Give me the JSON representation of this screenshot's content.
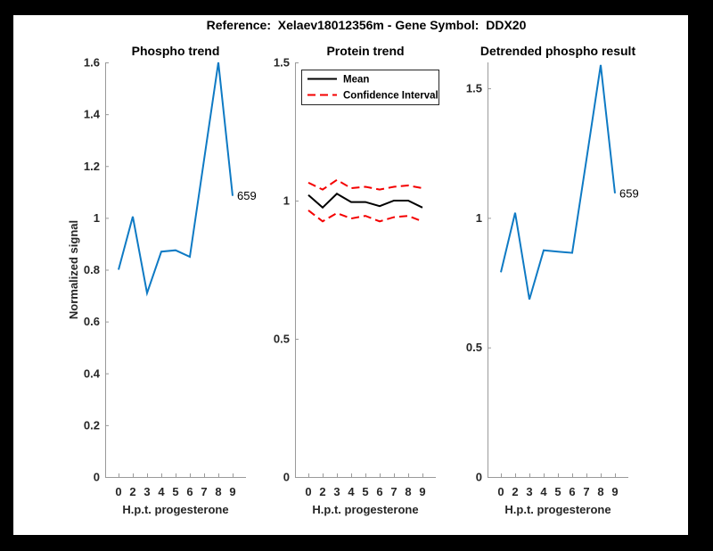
{
  "figure": {
    "title": "Reference:  Xelaev18012356m - Gene Symbol:  DDX20",
    "background": "#000000",
    "canvas": "#ffffff"
  },
  "colors": {
    "blue": "#0e7ac4",
    "red": "#f40000",
    "black": "#000000",
    "axis": "#9a9a9a",
    "text": "#262626"
  },
  "chart_data": [
    {
      "type": "line",
      "title": "Phospho trend",
      "xlabel": "H.p.t. progesterone",
      "ylabel": "Normalized signal",
      "categories": [
        "0",
        "2",
        "3",
        "4",
        "5",
        "6",
        "7",
        "8",
        "9"
      ],
      "ylim": [
        0,
        1.6
      ],
      "yticks": [
        0,
        0.2,
        0.4,
        0.6,
        0.8,
        1,
        1.2,
        1.4,
        1.6
      ],
      "ytick_labels": [
        "0",
        "0.2",
        "0.4",
        "0.6",
        "0.8",
        "1",
        "1.2",
        "1.4",
        "1.6"
      ],
      "grid": false,
      "legend": null,
      "series": [
        {
          "name": "phospho-trend",
          "color": "blue",
          "dash": false,
          "values": [
            0.8,
            1.005,
            0.71,
            0.87,
            0.875,
            0.85,
            1.225,
            1.6,
            1.085
          ]
        }
      ],
      "end_label": "659"
    },
    {
      "type": "line",
      "title": "Protein trend",
      "xlabel": "H.p.t. progesterone",
      "ylabel": "",
      "categories": [
        "0",
        "2",
        "3",
        "4",
        "5",
        "6",
        "7",
        "8",
        "9"
      ],
      "ylim": [
        0,
        1.5
      ],
      "yticks": [
        0,
        0.5,
        1,
        1.5
      ],
      "ytick_labels": [
        "0",
        "0.5",
        "1",
        "1.5"
      ],
      "grid": false,
      "legend": {
        "position": "northwest",
        "items": [
          {
            "label": "Mean",
            "series": "protein-mean"
          },
          {
            "label": "Confidence Interval",
            "series": "ci-upper"
          }
        ]
      },
      "series": [
        {
          "name": "ci-upper",
          "color": "red",
          "dash": true,
          "values": [
            1.065,
            1.04,
            1.075,
            1.045,
            1.05,
            1.04,
            1.05,
            1.055,
            1.045
          ]
        },
        {
          "name": "ci-lower",
          "color": "red",
          "dash": true,
          "values": [
            0.965,
            0.925,
            0.955,
            0.935,
            0.945,
            0.925,
            0.94,
            0.945,
            0.925
          ]
        },
        {
          "name": "protein-mean",
          "color": "black",
          "dash": false,
          "values": [
            1.02,
            0.975,
            1.025,
            0.995,
            0.995,
            0.98,
            1.0,
            1.0,
            0.975
          ]
        }
      ],
      "end_label": null
    },
    {
      "type": "line",
      "title": "Detrended phospho result",
      "xlabel": "H.p.t. progesterone",
      "ylabel": "",
      "categories": [
        "0",
        "2",
        "3",
        "4",
        "5",
        "6",
        "7",
        "8",
        "9"
      ],
      "ylim": [
        0,
        1.6
      ],
      "yticks": [
        0,
        0.5,
        1,
        1.5
      ],
      "ytick_labels": [
        "0",
        "0.5",
        "1",
        "1.5"
      ],
      "grid": false,
      "legend": null,
      "series": [
        {
          "name": "detrended",
          "color": "blue",
          "dash": false,
          "values": [
            0.79,
            1.02,
            0.685,
            0.875,
            0.87,
            0.865,
            1.225,
            1.59,
            1.095
          ]
        }
      ],
      "end_label": "659"
    }
  ]
}
